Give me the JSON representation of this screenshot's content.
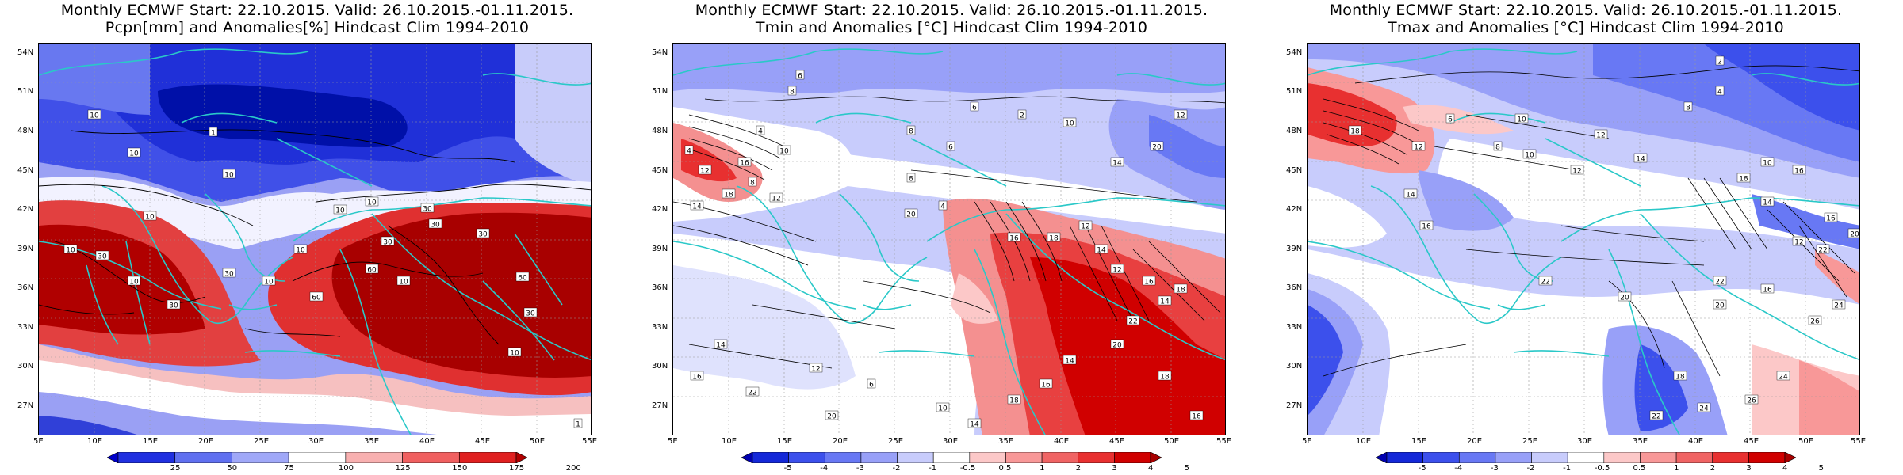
{
  "panels": [
    {
      "title_line1": "Monthly ECMWF Start: 22.10.2015. Valid: 26.10.2015.-01.11.2015.",
      "title_line2": "Pcpn[mm] and Anomalies[%] Hindcast Clim 1994-2010",
      "colorbar_labels": [
        "25",
        "50",
        "75",
        "100",
        "125",
        "150",
        "175",
        "200"
      ],
      "colorbar_colors": [
        "#0000c8",
        "#2030e0",
        "#6070f0",
        "#a0a8f8",
        "#ffffff",
        "#f8b0b0",
        "#f06060",
        "#e02020",
        "#b00000"
      ],
      "contour_labels": [
        "10",
        "10",
        "1",
        "10",
        "10",
        "10",
        "10",
        "10",
        "30",
        "30",
        "30",
        "30",
        "10",
        "10",
        "10",
        "30",
        "60",
        "30",
        "60",
        "30",
        "60",
        "30",
        "10",
        "10",
        "1"
      ]
    },
    {
      "title_line1": "Monthly ECMWF Start: 22.10.2015. Valid: 26.10.2015.-01.11.2015.",
      "title_line2": "Tmin and Anomalies [°C] Hindcast Clim 1994-2010",
      "colorbar_labels": [
        "-5",
        "-4",
        "-3",
        "-2",
        "-1",
        "-0.5",
        "0.5",
        "1",
        "2",
        "3",
        "4",
        "5"
      ],
      "colorbar_colors": [
        "#0000b0",
        "#1428d8",
        "#3c50ec",
        "#6878f4",
        "#98a0f8",
        "#c8ccfc",
        "#ffffff",
        "#fcc8c8",
        "#f89898",
        "#f06464",
        "#e83030",
        "#d00000",
        "#a80000"
      ],
      "contour_labels": [
        "6",
        "8",
        "4",
        "10",
        "4",
        "16",
        "12",
        "8",
        "18",
        "12",
        "14",
        "6",
        "8",
        "4",
        "20",
        "16",
        "18",
        "12",
        "14",
        "12",
        "16",
        "18",
        "14",
        "22",
        "20",
        "14",
        "16",
        "18",
        "14",
        "10",
        "6",
        "12",
        "14",
        "16",
        "22",
        "20",
        "18",
        "16",
        "14",
        "20",
        "12",
        "10",
        "2",
        "6",
        "8"
      ]
    },
    {
      "title_line1": "Monthly ECMWF Start: 22.10.2015. Valid: 26.10.2015.-01.11.2015.",
      "title_line2": "Tmax and Anomalies [°C] Hindcast Clim 1994-2010",
      "colorbar_labels": [
        "-5",
        "-4",
        "-3",
        "-2",
        "-1",
        "-0.5",
        "0.5",
        "1",
        "2",
        "3",
        "4",
        "5"
      ],
      "colorbar_colors": [
        "#0000b0",
        "#1428d8",
        "#3c50ec",
        "#6878f4",
        "#98a0f8",
        "#c8ccfc",
        "#ffffff",
        "#fcc8c8",
        "#f89898",
        "#f06464",
        "#e83030",
        "#d00000",
        "#a80000"
      ],
      "contour_labels": [
        "2",
        "4",
        "8",
        "12",
        "6",
        "10",
        "8",
        "10",
        "12",
        "14",
        "10",
        "16",
        "18",
        "14",
        "16",
        "20",
        "12",
        "22",
        "16",
        "20",
        "18",
        "22",
        "24",
        "26",
        "24",
        "22",
        "20",
        "26",
        "24",
        "22",
        "18",
        "12",
        "14",
        "16"
      ]
    }
  ],
  "lat_ticks": [
    "54N",
    "51N",
    "48N",
    "45N",
    "42N",
    "39N",
    "36N",
    "33N",
    "30N",
    "27N"
  ],
  "lon_ticks": [
    "5E",
    "10E",
    "15E",
    "20E",
    "25E",
    "30E",
    "35E",
    "40E",
    "45E",
    "50E",
    "55E"
  ]
}
